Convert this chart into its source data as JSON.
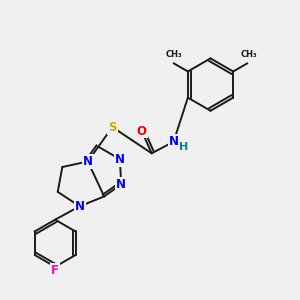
{
  "bg_color": "#f0f0f0",
  "bond_color": "#1a1a1a",
  "bond_width": 1.4,
  "atom_colors": {
    "N": "#0000ee",
    "O": "#ee0000",
    "S": "#ccaa00",
    "F": "#ff00cc",
    "H": "#008888",
    "C": "#1a1a1a"
  },
  "font_size": 8.5
}
